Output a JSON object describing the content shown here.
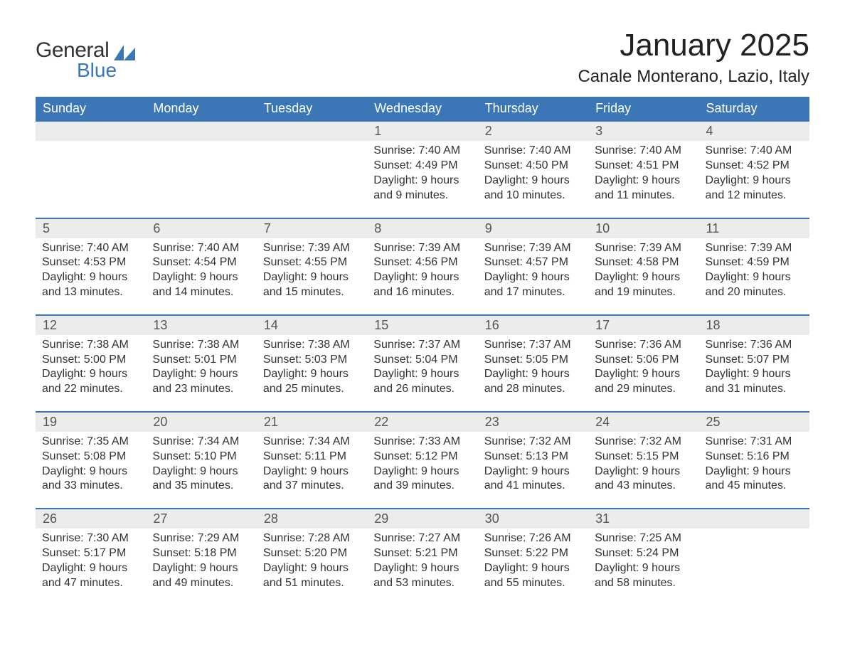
{
  "brand": {
    "word1": "General",
    "word2": "Blue",
    "accent_color": "#3b77b6",
    "text_color": "#333333"
  },
  "header": {
    "month_title": "January 2025",
    "location": "Canale Monterano, Lazio, Italy"
  },
  "colors": {
    "header_bg": "#3b77b6",
    "header_text": "#ffffff",
    "daynum_bg": "#ececec",
    "body_text": "#333333",
    "page_bg": "#ffffff"
  },
  "days_of_week": [
    "Sunday",
    "Monday",
    "Tuesday",
    "Wednesday",
    "Thursday",
    "Friday",
    "Saturday"
  ],
  "weeks": [
    [
      {
        "blank": true
      },
      {
        "blank": true
      },
      {
        "blank": true
      },
      {
        "n": "1",
        "sr": "Sunrise: 7:40 AM",
        "ss": "Sunset: 4:49 PM",
        "d1": "Daylight: 9 hours",
        "d2": "and 9 minutes."
      },
      {
        "n": "2",
        "sr": "Sunrise: 7:40 AM",
        "ss": "Sunset: 4:50 PM",
        "d1": "Daylight: 9 hours",
        "d2": "and 10 minutes."
      },
      {
        "n": "3",
        "sr": "Sunrise: 7:40 AM",
        "ss": "Sunset: 4:51 PM",
        "d1": "Daylight: 9 hours",
        "d2": "and 11 minutes."
      },
      {
        "n": "4",
        "sr": "Sunrise: 7:40 AM",
        "ss": "Sunset: 4:52 PM",
        "d1": "Daylight: 9 hours",
        "d2": "and 12 minutes."
      }
    ],
    [
      {
        "n": "5",
        "sr": "Sunrise: 7:40 AM",
        "ss": "Sunset: 4:53 PM",
        "d1": "Daylight: 9 hours",
        "d2": "and 13 minutes."
      },
      {
        "n": "6",
        "sr": "Sunrise: 7:40 AM",
        "ss": "Sunset: 4:54 PM",
        "d1": "Daylight: 9 hours",
        "d2": "and 14 minutes."
      },
      {
        "n": "7",
        "sr": "Sunrise: 7:39 AM",
        "ss": "Sunset: 4:55 PM",
        "d1": "Daylight: 9 hours",
        "d2": "and 15 minutes."
      },
      {
        "n": "8",
        "sr": "Sunrise: 7:39 AM",
        "ss": "Sunset: 4:56 PM",
        "d1": "Daylight: 9 hours",
        "d2": "and 16 minutes."
      },
      {
        "n": "9",
        "sr": "Sunrise: 7:39 AM",
        "ss": "Sunset: 4:57 PM",
        "d1": "Daylight: 9 hours",
        "d2": "and 17 minutes."
      },
      {
        "n": "10",
        "sr": "Sunrise: 7:39 AM",
        "ss": "Sunset: 4:58 PM",
        "d1": "Daylight: 9 hours",
        "d2": "and 19 minutes."
      },
      {
        "n": "11",
        "sr": "Sunrise: 7:39 AM",
        "ss": "Sunset: 4:59 PM",
        "d1": "Daylight: 9 hours",
        "d2": "and 20 minutes."
      }
    ],
    [
      {
        "n": "12",
        "sr": "Sunrise: 7:38 AM",
        "ss": "Sunset: 5:00 PM",
        "d1": "Daylight: 9 hours",
        "d2": "and 22 minutes."
      },
      {
        "n": "13",
        "sr": "Sunrise: 7:38 AM",
        "ss": "Sunset: 5:01 PM",
        "d1": "Daylight: 9 hours",
        "d2": "and 23 minutes."
      },
      {
        "n": "14",
        "sr": "Sunrise: 7:38 AM",
        "ss": "Sunset: 5:03 PM",
        "d1": "Daylight: 9 hours",
        "d2": "and 25 minutes."
      },
      {
        "n": "15",
        "sr": "Sunrise: 7:37 AM",
        "ss": "Sunset: 5:04 PM",
        "d1": "Daylight: 9 hours",
        "d2": "and 26 minutes."
      },
      {
        "n": "16",
        "sr": "Sunrise: 7:37 AM",
        "ss": "Sunset: 5:05 PM",
        "d1": "Daylight: 9 hours",
        "d2": "and 28 minutes."
      },
      {
        "n": "17",
        "sr": "Sunrise: 7:36 AM",
        "ss": "Sunset: 5:06 PM",
        "d1": "Daylight: 9 hours",
        "d2": "and 29 minutes."
      },
      {
        "n": "18",
        "sr": "Sunrise: 7:36 AM",
        "ss": "Sunset: 5:07 PM",
        "d1": "Daylight: 9 hours",
        "d2": "and 31 minutes."
      }
    ],
    [
      {
        "n": "19",
        "sr": "Sunrise: 7:35 AM",
        "ss": "Sunset: 5:08 PM",
        "d1": "Daylight: 9 hours",
        "d2": "and 33 minutes."
      },
      {
        "n": "20",
        "sr": "Sunrise: 7:34 AM",
        "ss": "Sunset: 5:10 PM",
        "d1": "Daylight: 9 hours",
        "d2": "and 35 minutes."
      },
      {
        "n": "21",
        "sr": "Sunrise: 7:34 AM",
        "ss": "Sunset: 5:11 PM",
        "d1": "Daylight: 9 hours",
        "d2": "and 37 minutes."
      },
      {
        "n": "22",
        "sr": "Sunrise: 7:33 AM",
        "ss": "Sunset: 5:12 PM",
        "d1": "Daylight: 9 hours",
        "d2": "and 39 minutes."
      },
      {
        "n": "23",
        "sr": "Sunrise: 7:32 AM",
        "ss": "Sunset: 5:13 PM",
        "d1": "Daylight: 9 hours",
        "d2": "and 41 minutes."
      },
      {
        "n": "24",
        "sr": "Sunrise: 7:32 AM",
        "ss": "Sunset: 5:15 PM",
        "d1": "Daylight: 9 hours",
        "d2": "and 43 minutes."
      },
      {
        "n": "25",
        "sr": "Sunrise: 7:31 AM",
        "ss": "Sunset: 5:16 PM",
        "d1": "Daylight: 9 hours",
        "d2": "and 45 minutes."
      }
    ],
    [
      {
        "n": "26",
        "sr": "Sunrise: 7:30 AM",
        "ss": "Sunset: 5:17 PM",
        "d1": "Daylight: 9 hours",
        "d2": "and 47 minutes."
      },
      {
        "n": "27",
        "sr": "Sunrise: 7:29 AM",
        "ss": "Sunset: 5:18 PM",
        "d1": "Daylight: 9 hours",
        "d2": "and 49 minutes."
      },
      {
        "n": "28",
        "sr": "Sunrise: 7:28 AM",
        "ss": "Sunset: 5:20 PM",
        "d1": "Daylight: 9 hours",
        "d2": "and 51 minutes."
      },
      {
        "n": "29",
        "sr": "Sunrise: 7:27 AM",
        "ss": "Sunset: 5:21 PM",
        "d1": "Daylight: 9 hours",
        "d2": "and 53 minutes."
      },
      {
        "n": "30",
        "sr": "Sunrise: 7:26 AM",
        "ss": "Sunset: 5:22 PM",
        "d1": "Daylight: 9 hours",
        "d2": "and 55 minutes."
      },
      {
        "n": "31",
        "sr": "Sunrise: 7:25 AM",
        "ss": "Sunset: 5:24 PM",
        "d1": "Daylight: 9 hours",
        "d2": "and 58 minutes."
      },
      {
        "blank": true
      }
    ]
  ]
}
